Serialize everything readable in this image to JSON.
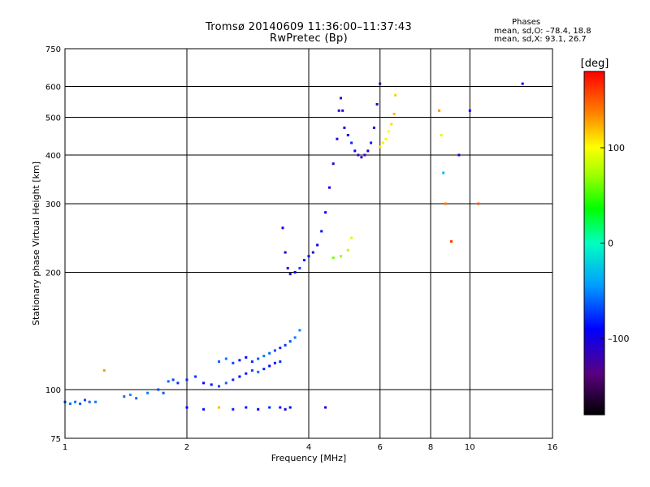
{
  "title_line1": "Tromsø 20140609 11:36:00–11:37:43",
  "title_line2": "RwPretec (Bp)",
  "stats": {
    "heading": "Phases",
    "line_o": "mean, sd,O: –78.4, 18.8",
    "line_x": "mean, sd,X:  93.1, 26.7"
  },
  "colorbar": {
    "label": "[deg]",
    "tick_labels": [
      "100",
      "0",
      "–100"
    ],
    "ticks": [
      100,
      0,
      -100
    ],
    "range": [
      -180,
      180
    ]
  },
  "chart_data": {
    "type": "scatter",
    "xlabel": "Frequency [MHz]",
    "ylabel": "Stationary phase Virtual Height [km]",
    "x_scale": "log",
    "y_scale": "log",
    "xlim": [
      1,
      16
    ],
    "ylim": [
      75,
      750
    ],
    "x_ticks": [
      1,
      2,
      4,
      6,
      8,
      10,
      16
    ],
    "x_tick_labels": [
      "1",
      "2",
      "4",
      "6",
      "8",
      "10",
      "16"
    ],
    "y_ticks": [
      75,
      100,
      200,
      300,
      400,
      500,
      600,
      750
    ],
    "y_tick_labels": [
      "75",
      "100",
      "200",
      "300",
      "400",
      "500",
      "600",
      "750"
    ],
    "grid": true,
    "color_by": "phase [deg]",
    "series": [
      {
        "x": [
          1.0,
          1.03,
          1.06,
          1.09,
          1.12,
          1.15,
          1.19
        ],
        "y": [
          93,
          92,
          93,
          92,
          94,
          93,
          93
        ],
        "phase": [
          -70,
          -60,
          -55,
          -65,
          -70,
          -60,
          -55
        ]
      },
      {
        "x": [
          1.25,
          1.4,
          1.45,
          1.5,
          1.6,
          1.7,
          1.75,
          1.8,
          1.85,
          1.9
        ],
        "y": [
          112,
          96,
          97,
          95,
          98,
          100,
          98,
          105,
          106,
          104
        ],
        "phase": [
          130,
          -55,
          -50,
          -60,
          -55,
          -70,
          -65,
          -60,
          -70,
          -75
        ]
      },
      {
        "x": [
          2.0,
          2.1,
          2.2,
          2.3,
          2.4,
          2.5,
          2.6,
          2.7,
          2.8,
          2.9,
          3.0,
          3.1,
          3.2,
          3.3,
          3.4
        ],
        "y": [
          106,
          108,
          104,
          103,
          102,
          104,
          106,
          108,
          110,
          112,
          111,
          113,
          115,
          117,
          118
        ],
        "phase": [
          -80,
          -75,
          -90,
          -85,
          -70,
          -60,
          -80,
          -90,
          -85,
          -70,
          -60,
          -80,
          -90,
          -85,
          -75
        ]
      },
      {
        "x": [
          2.4,
          2.5,
          2.6,
          2.7,
          2.8,
          2.9,
          3.0,
          3.1,
          3.2,
          3.3,
          3.4,
          3.5,
          3.6,
          3.7,
          3.8
        ],
        "y": [
          118,
          120,
          117,
          119,
          121,
          118,
          120,
          122,
          124,
          126,
          128,
          130,
          133,
          136,
          142
        ],
        "phase": [
          -60,
          -55,
          -70,
          -85,
          -90,
          -75,
          -65,
          -55,
          -60,
          -70,
          -80,
          -75,
          -65,
          -55,
          -50
        ]
      },
      {
        "x": [
          2.0,
          2.2,
          2.4,
          2.6,
          2.8,
          3.0,
          3.2,
          3.4,
          3.5,
          3.6,
          4.4
        ],
        "y": [
          90,
          89,
          90,
          89,
          90,
          89,
          90,
          90,
          89,
          90,
          90
        ],
        "phase": [
          -90,
          -85,
          120,
          -80,
          -85,
          -90,
          -80,
          -95,
          -100,
          -90,
          -100
        ]
      },
      {
        "x": [
          3.45,
          3.5,
          3.55,
          3.6,
          3.7,
          3.8,
          3.9,
          4.0,
          4.1,
          4.2,
          4.3,
          4.4,
          4.5,
          4.6,
          4.7
        ],
        "y": [
          260,
          225,
          205,
          198,
          200,
          205,
          215,
          220,
          225,
          235,
          255,
          285,
          330,
          380,
          440
        ],
        "phase": [
          -95,
          -100,
          -110,
          -105,
          -90,
          -70,
          -80,
          -100,
          -105,
          -95,
          -85,
          -90,
          -100,
          -110,
          -105
        ]
      },
      {
        "x": [
          4.75,
          4.8,
          4.85,
          4.9,
          5.0,
          5.1,
          5.2,
          5.3,
          5.4,
          5.5,
          5.6,
          5.7,
          5.8,
          5.9,
          6.0
        ],
        "y": [
          520,
          560,
          520,
          470,
          450,
          430,
          410,
          400,
          395,
          400,
          410,
          430,
          470,
          540,
          610
        ],
        "phase": [
          -110,
          -120,
          -115,
          -100,
          -90,
          -80,
          -95,
          -110,
          -115,
          -120,
          -100,
          -85,
          -95,
          -110,
          -120
        ]
      },
      {
        "x": [
          4.6,
          4.8,
          5.0,
          5.1
        ],
        "y": [
          218,
          220,
          228,
          245
        ],
        "phase": [
          60,
          70,
          80,
          90
        ]
      },
      {
        "x": [
          6.0,
          6.1,
          6.2,
          6.3,
          6.4,
          6.5,
          6.55
        ],
        "y": [
          420,
          430,
          440,
          460,
          480,
          510,
          570
        ],
        "phase": [
          110,
          105,
          95,
          100,
          110,
          120,
          115
        ]
      },
      {
        "x": [
          8.4,
          8.5,
          8.6,
          8.7,
          9.0,
          9.4,
          10.0,
          10.5,
          13.5
        ],
        "y": [
          520,
          450,
          360,
          300,
          240,
          400,
          520,
          300,
          610
        ],
        "phase": [
          130,
          90,
          -30,
          140,
          160,
          -110,
          -90,
          150,
          -100
        ]
      }
    ]
  }
}
